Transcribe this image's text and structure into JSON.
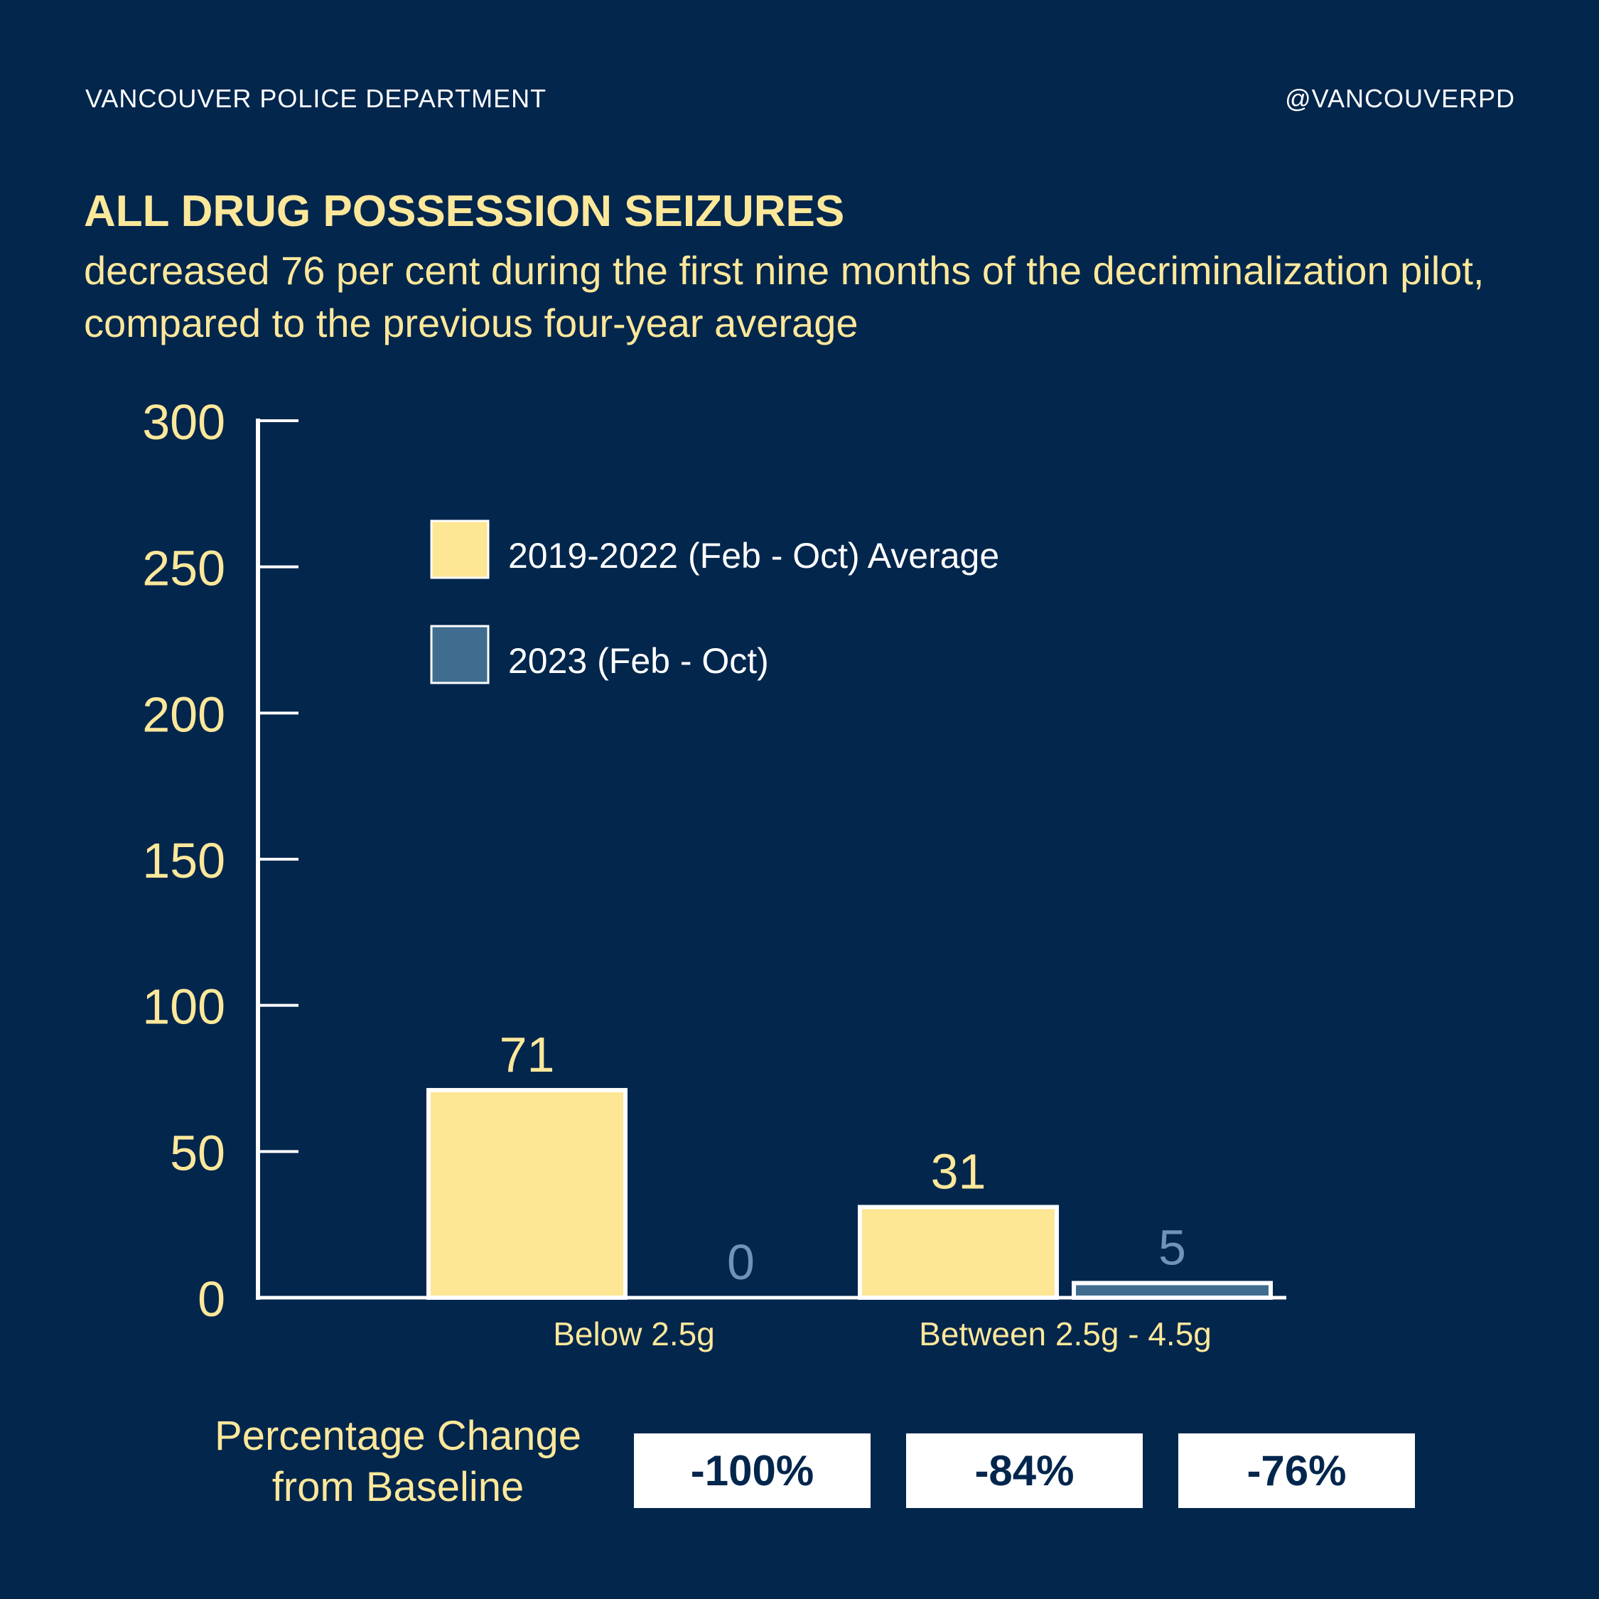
{
  "header": {
    "organization": "VANCOUVER POLICE DEPARTMENT",
    "handle": "@VANCOUVERPD"
  },
  "title": "ALL DRUG POSSESSION SEIZURES",
  "subtitle": "decreased 76 per cent during the first nine months of the decriminalization pilot, compared to the previous four-year average",
  "colors": {
    "background": "#03264d",
    "baseline_series": "#fde694",
    "current_series": "#406d8f",
    "current_value_label": "#6f94b8",
    "accent_text": "#fde89a",
    "axis": "#ffffff"
  },
  "chart_data": {
    "type": "bar",
    "title": "ALL DRUG POSSESSION SEIZURES",
    "xlabel": "",
    "ylabel": "",
    "ylim": [
      0,
      300
    ],
    "yticks": [
      0,
      50,
      100,
      150,
      200,
      250,
      300
    ],
    "categories": [
      "Below 2.5g",
      "Between 2.5g - 4.5g"
    ],
    "series": [
      {
        "name": "2019-2022 (Feb - Oct) Average",
        "values": [
          71,
          31
        ]
      },
      {
        "name": "2023 (Feb - Oct)",
        "values": [
          0,
          5
        ]
      }
    ],
    "legend_position": "top-left",
    "grid": false
  },
  "percentage_change": {
    "label": "Percentage Change from Baseline",
    "values": [
      "-100%",
      "-84%",
      "-76%"
    ]
  }
}
